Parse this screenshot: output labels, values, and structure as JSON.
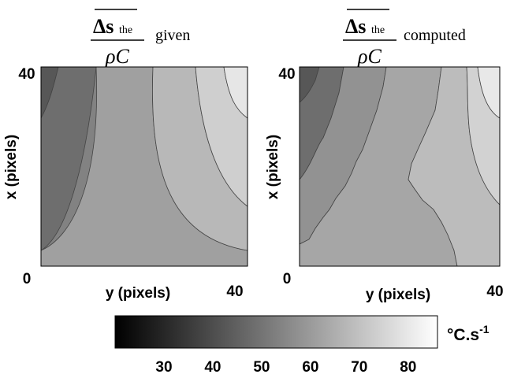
{
  "chart_data": [
    {
      "type": "heatmap",
      "title_symbol": "Δs",
      "title_subscript": "the",
      "title_denominator": "ρC",
      "title_suffix": "given",
      "xlabel": "y (pixels)",
      "ylabel": "x (pixels)",
      "x_ticks": [
        "0",
        "40"
      ],
      "y_ticks": [
        "40"
      ],
      "xlim": [
        0,
        40
      ],
      "ylim": [
        0,
        40
      ],
      "contour_levels": [
        40,
        50,
        60,
        70,
        80
      ]
    },
    {
      "type": "heatmap",
      "title_symbol": "Δs",
      "title_subscript": "the",
      "title_denominator": "ρC",
      "title_suffix": "computed",
      "xlabel": "y (pixels)",
      "ylabel": "x (pixels)",
      "x_ticks": [
        "0",
        "40"
      ],
      "y_ticks": [
        "40"
      ],
      "xlim": [
        0,
        40
      ],
      "ylim": [
        0,
        40
      ],
      "contour_levels": [
        40,
        50,
        60,
        70,
        80
      ]
    }
  ],
  "colorbar": {
    "unit_label": "°C.s",
    "unit_exponent": "-1",
    "min": 20,
    "max": 86,
    "ticks": [
      "30",
      "40",
      "50",
      "60",
      "70",
      "80"
    ],
    "tick_values": [
      30,
      40,
      50,
      60,
      70,
      80
    ],
    "low_color": "#000000",
    "high_color": "#ffffff"
  }
}
